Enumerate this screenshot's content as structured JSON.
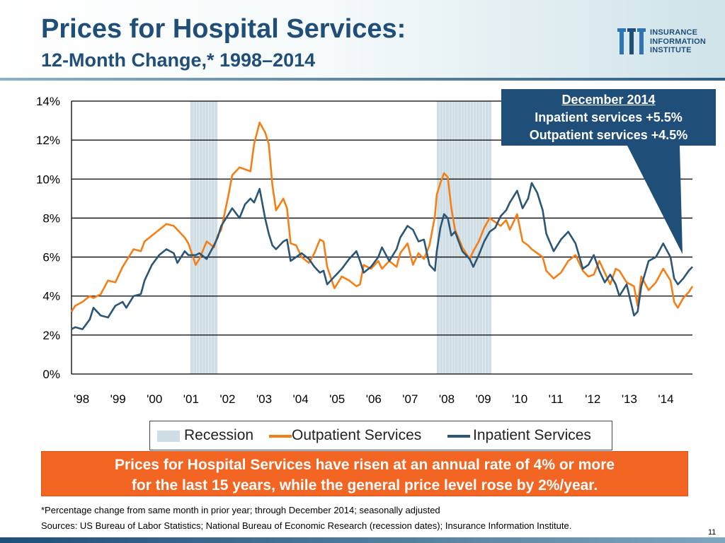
{
  "slide": {
    "title": "Prices for Hospital Services:",
    "subtitle": "12-Month Change,* 1998–2014",
    "page_number": "11",
    "logo": {
      "lines": [
        "INSURANCE",
        "INFORMATION",
        "INSTITUTE"
      ]
    }
  },
  "callout": {
    "heading": "December 2014",
    "line1": "Inpatient services +5.5%",
    "line2": "Outpatient services +4.5%"
  },
  "banner": {
    "line1": "Prices for Hospital Services have risen at an annual rate of 4% or more",
    "line2": "for the last 15 years, while the general price level rose by 2%/year."
  },
  "footnotes": {
    "note": "*Percentage change from same month in prior year; through December 2014; seasonally adjusted",
    "sources": "Sources: US Bureau of Labor Statistics;  National Bureau of Economic Research (recession dates); Insurance Information Institute."
  },
  "colors": {
    "outpatient": "#f57f17",
    "inpatient": "#2b5675",
    "recession": "#cfdde4",
    "callout": "#1f4e79",
    "banner": "#f26522",
    "title": "#1f4e79"
  },
  "chart_data": {
    "type": "line",
    "title": "",
    "xlabel": "",
    "ylabel": "",
    "categories": [
      "'98",
      "'99",
      "'00",
      "'01",
      "'02",
      "'03",
      "'04",
      "'05",
      "'06",
      "'07",
      "'08",
      "'09",
      "'10",
      "'11",
      "'12",
      "'13",
      "'14"
    ],
    "x_range": [
      1998.0,
      2015.0
    ],
    "ylim": [
      0,
      14
    ],
    "yticks": [
      0,
      2,
      4,
      6,
      8,
      10,
      12,
      14
    ],
    "ytick_labels": [
      "0%",
      "2%",
      "4%",
      "6%",
      "8%",
      "10%",
      "12%",
      "14%"
    ],
    "grid": true,
    "recessions": [
      {
        "name": "Recession",
        "start": 2001.25,
        "end": 2002.0
      },
      {
        "name": "Recession",
        "start": 2008.0,
        "end": 2009.5
      }
    ],
    "series": [
      {
        "name": "Outpatient Services",
        "x": [
          1998.0,
          1998.1,
          1998.3,
          1998.5,
          1998.6,
          1998.8,
          1999.0,
          1999.2,
          1999.4,
          1999.5,
          1999.7,
          1999.9,
          2000.0,
          2000.2,
          2000.4,
          2000.6,
          2000.8,
          2000.9,
          2001.1,
          2001.2,
          2001.4,
          2001.5,
          2001.7,
          2001.9,
          2002.0,
          2002.1,
          2002.3,
          2002.4,
          2002.6,
          2002.75,
          2002.9,
          2003.0,
          2003.15,
          2003.3,
          2003.4,
          2003.5,
          2003.6,
          2003.8,
          2003.9,
          2004.0,
          2004.15,
          2004.3,
          2004.5,
          2004.65,
          2004.8,
          2004.9,
          2005.0,
          2005.2,
          2005.4,
          2005.6,
          2005.8,
          2005.9,
          2006.0,
          2006.2,
          2006.4,
          2006.5,
          2006.7,
          2006.9,
          2007.0,
          2007.2,
          2007.35,
          2007.5,
          2007.65,
          2007.8,
          2007.95,
          2008.0,
          2008.1,
          2008.2,
          2008.3,
          2008.4,
          2008.5,
          2008.7,
          2008.9,
          2009.0,
          2009.15,
          2009.3,
          2009.45,
          2009.6,
          2009.75,
          2009.9,
          2010.0,
          2010.2,
          2010.35,
          2010.5,
          2010.6,
          2010.75,
          2010.9,
          2011.0,
          2011.2,
          2011.4,
          2011.6,
          2011.8,
          2012.0,
          2012.15,
          2012.3,
          2012.45,
          2012.6,
          2012.75,
          2012.9,
          2013.0,
          2013.2,
          2013.4,
          2013.5,
          2013.6,
          2013.8,
          2014.0,
          2014.2,
          2014.4,
          2014.5,
          2014.6,
          2014.75,
          2014.9,
          2015.0
        ],
        "values": [
          3.2,
          3.5,
          3.7,
          4.0,
          3.9,
          4.1,
          4.8,
          4.7,
          5.5,
          5.8,
          6.4,
          6.3,
          6.8,
          7.1,
          7.4,
          7.7,
          7.6,
          7.4,
          7.0,
          6.7,
          5.6,
          5.9,
          6.8,
          6.5,
          7.1,
          7.4,
          9.2,
          10.2,
          10.6,
          10.5,
          10.4,
          11.8,
          12.9,
          12.4,
          11.8,
          9.7,
          8.4,
          9.0,
          8.5,
          6.7,
          6.6,
          6.0,
          5.7,
          6.2,
          6.9,
          6.8,
          5.5,
          4.4,
          5.0,
          4.8,
          4.5,
          4.6,
          5.6,
          5.4,
          5.8,
          5.4,
          5.8,
          5.5,
          6.2,
          6.7,
          5.6,
          6.2,
          5.9,
          6.6,
          8.1,
          9.2,
          9.8,
          10.3,
          10.1,
          8.5,
          7.4,
          6.5,
          5.9,
          6.3,
          6.8,
          7.5,
          8.0,
          7.8,
          7.6,
          7.9,
          7.4,
          8.2,
          6.8,
          6.6,
          6.4,
          6.2,
          6.0,
          5.3,
          4.9,
          5.2,
          5.8,
          6.1,
          5.3,
          5.0,
          5.1,
          5.8,
          5.2,
          4.6,
          5.4,
          5.3,
          4.7,
          4.5,
          3.5,
          5.0,
          4.3,
          4.7,
          5.4,
          4.8,
          3.7,
          3.4,
          3.9,
          4.2,
          4.5
        ]
      },
      {
        "name": "Inpatient Services",
        "x": [
          1998.0,
          1998.1,
          1998.3,
          1998.5,
          1998.6,
          1998.8,
          1999.0,
          1999.2,
          1999.4,
          1999.5,
          1999.7,
          1999.9,
          2000.0,
          2000.2,
          2000.4,
          2000.6,
          2000.8,
          2000.9,
          2001.1,
          2001.2,
          2001.4,
          2001.5,
          2001.7,
          2001.9,
          2002.0,
          2002.1,
          2002.3,
          2002.4,
          2002.6,
          2002.75,
          2002.9,
          2003.0,
          2003.15,
          2003.3,
          2003.4,
          2003.5,
          2003.6,
          2003.8,
          2003.9,
          2004.0,
          2004.15,
          2004.3,
          2004.5,
          2004.65,
          2004.8,
          2004.9,
          2005.0,
          2005.2,
          2005.4,
          2005.6,
          2005.8,
          2005.9,
          2006.0,
          2006.2,
          2006.4,
          2006.5,
          2006.7,
          2006.9,
          2007.0,
          2007.2,
          2007.35,
          2007.5,
          2007.65,
          2007.8,
          2007.95,
          2008.0,
          2008.1,
          2008.2,
          2008.3,
          2008.4,
          2008.5,
          2008.7,
          2008.9,
          2009.0,
          2009.15,
          2009.3,
          2009.45,
          2009.6,
          2009.75,
          2009.9,
          2010.0,
          2010.2,
          2010.35,
          2010.5,
          2010.6,
          2010.75,
          2010.9,
          2011.0,
          2011.2,
          2011.4,
          2011.6,
          2011.8,
          2012.0,
          2012.15,
          2012.3,
          2012.45,
          2012.6,
          2012.75,
          2012.9,
          2013.0,
          2013.2,
          2013.4,
          2013.5,
          2013.6,
          2013.8,
          2014.0,
          2014.2,
          2014.4,
          2014.5,
          2014.6,
          2014.75,
          2014.9,
          2015.0
        ],
        "values": [
          2.3,
          2.4,
          2.3,
          2.8,
          3.4,
          3.0,
          2.9,
          3.5,
          3.7,
          3.4,
          4.0,
          4.1,
          4.8,
          5.6,
          6.1,
          6.4,
          6.2,
          5.7,
          6.3,
          6.1,
          6.1,
          6.2,
          5.9,
          6.6,
          7.0,
          7.6,
          8.2,
          8.5,
          8.0,
          8.7,
          9.0,
          8.8,
          9.5,
          8.0,
          7.2,
          6.6,
          6.4,
          6.8,
          6.9,
          5.8,
          6.0,
          6.2,
          5.9,
          5.5,
          5.2,
          5.3,
          4.6,
          5.0,
          5.4,
          5.9,
          6.3,
          5.8,
          5.2,
          5.5,
          6.0,
          6.5,
          5.8,
          6.4,
          7.0,
          7.6,
          7.4,
          6.8,
          6.9,
          5.6,
          5.3,
          6.3,
          7.5,
          8.2,
          8.0,
          7.1,
          7.3,
          6.3,
          5.9,
          5.5,
          6.1,
          6.8,
          7.3,
          7.5,
          8.1,
          8.4,
          8.8,
          9.4,
          8.5,
          9.0,
          9.8,
          9.3,
          8.4,
          7.2,
          6.3,
          6.9,
          7.3,
          6.7,
          5.4,
          5.6,
          6.1,
          5.3,
          4.7,
          5.1,
          4.6,
          4.0,
          4.6,
          3.0,
          3.2,
          4.5,
          5.8,
          6.0,
          6.7,
          6.0,
          4.9,
          4.6,
          4.9,
          5.3,
          5.5
        ]
      }
    ],
    "legend": {
      "placement": "bottom",
      "entries": [
        "Recession",
        "Outpatient Services",
        "Inpatient Services"
      ]
    }
  }
}
